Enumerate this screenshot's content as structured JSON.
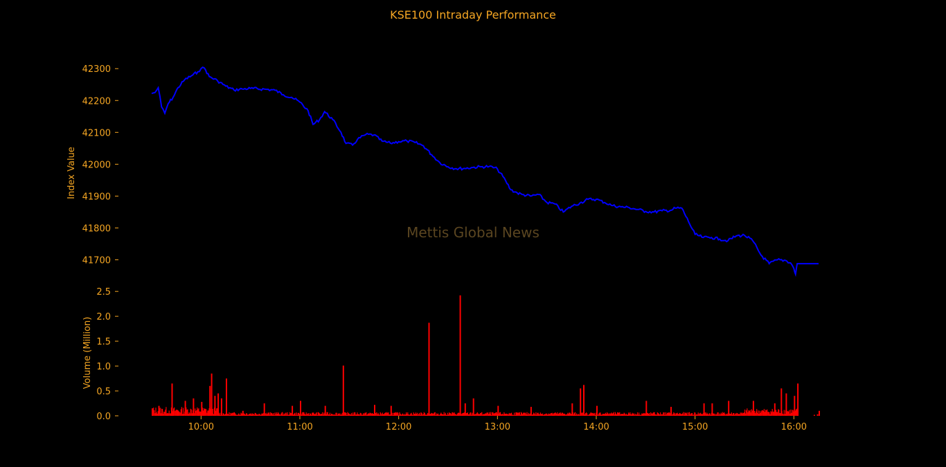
{
  "chart_data": [
    {
      "type": "line",
      "title": "KSE100 Intraday Performance",
      "ylabel": "Index Value",
      "ylim": [
        41636,
        42320
      ],
      "yticks": [
        41700,
        41800,
        41900,
        42000,
        42100,
        42200,
        42300
      ],
      "xlim": [
        "09:30",
        "16:15"
      ],
      "series": [
        {
          "color": "#0000ff",
          "points": [
            [
              "09:30",
              42222
            ],
            [
              "09:32",
              42225
            ],
            [
              "09:34",
              42240
            ],
            [
              "09:36",
              42180
            ],
            [
              "09:38",
              42160
            ],
            [
              "09:40",
              42190
            ],
            [
              "09:43",
              42210
            ],
            [
              "09:46",
              42240
            ],
            [
              "09:50",
              42265
            ],
            [
              "09:55",
              42280
            ],
            [
              "09:58",
              42290
            ],
            [
              "10:00",
              42300
            ],
            [
              "10:02",
              42302
            ],
            [
              "10:05",
              42275
            ],
            [
              "10:10",
              42262
            ],
            [
              "10:15",
              42245
            ],
            [
              "10:20",
              42233
            ],
            [
              "10:25",
              42236
            ],
            [
              "10:30",
              42238
            ],
            [
              "10:40",
              42235
            ],
            [
              "10:45",
              42232
            ],
            [
              "10:50",
              42218
            ],
            [
              "10:55",
              42210
            ],
            [
              "11:00",
              42195
            ],
            [
              "11:05",
              42168
            ],
            [
              "11:08",
              42125
            ],
            [
              "11:12",
              42140
            ],
            [
              "11:15",
              42165
            ],
            [
              "11:20",
              42140
            ],
            [
              "11:25",
              42100
            ],
            [
              "11:28",
              42065
            ],
            [
              "11:32",
              42060
            ],
            [
              "11:35",
              42078
            ],
            [
              "11:40",
              42093
            ],
            [
              "11:45",
              42092
            ],
            [
              "11:50",
              42072
            ],
            [
              "11:55",
              42066
            ],
            [
              "12:00",
              42071
            ],
            [
              "12:05",
              42073
            ],
            [
              "12:10",
              42068
            ],
            [
              "12:15",
              42058
            ],
            [
              "12:20",
              42030
            ],
            [
              "12:25",
              42005
            ],
            [
              "12:30",
              41992
            ],
            [
              "12:35",
              41986
            ],
            [
              "12:40",
              41987
            ],
            [
              "12:45",
              41990
            ],
            [
              "12:50",
              41992
            ],
            [
              "12:55",
              41993
            ],
            [
              "13:00",
              41985
            ],
            [
              "13:05",
              41948
            ],
            [
              "13:08",
              41920
            ],
            [
              "13:12",
              41910
            ],
            [
              "13:15",
              41905
            ],
            [
              "13:20",
              41900
            ],
            [
              "13:25",
              41905
            ],
            [
              "13:30",
              41880
            ],
            [
              "13:35",
              41875
            ],
            [
              "13:40",
              41850
            ],
            [
              "13:45",
              41868
            ],
            [
              "13:50",
              41878
            ],
            [
              "13:55",
              41890
            ],
            [
              "14:00",
              41890
            ],
            [
              "14:05",
              41880
            ],
            [
              "14:10",
              41870
            ],
            [
              "14:15",
              41866
            ],
            [
              "14:20",
              41864
            ],
            [
              "14:25",
              41858
            ],
            [
              "14:30",
              41852
            ],
            [
              "14:35",
              41850
            ],
            [
              "14:40",
              41854
            ],
            [
              "14:45",
              41855
            ],
            [
              "14:48",
              41862
            ],
            [
              "14:52",
              41862
            ],
            [
              "14:56",
              41820
            ],
            [
              "15:00",
              41780
            ],
            [
              "15:05",
              41770
            ],
            [
              "15:10",
              41770
            ],
            [
              "15:15",
              41765
            ],
            [
              "15:20",
              41760
            ],
            [
              "15:25",
              41775
            ],
            [
              "15:30",
              41777
            ],
            [
              "15:35",
              41760
            ],
            [
              "15:40",
              41715
            ],
            [
              "15:45",
              41688
            ],
            [
              "15:50",
              41700
            ],
            [
              "15:55",
              41698
            ],
            [
              "15:58",
              41690
            ],
            [
              "16:00",
              41673
            ],
            [
              "16:01",
              41655
            ],
            [
              "16:02",
              41688
            ],
            [
              "16:15",
              41688
            ]
          ]
        }
      ]
    },
    {
      "type": "bar",
      "ylabel": "Volume (Million)",
      "ylim": [
        0,
        2.6
      ],
      "yticks": [
        "0.0",
        "0.5",
        "1.0",
        "1.5",
        "2.0",
        "2.5"
      ],
      "xticks": [
        "10:00",
        "11:00",
        "12:00",
        "13:00",
        "14:00",
        "15:00",
        "16:00"
      ],
      "xlim": [
        "09:30",
        "16:15"
      ],
      "color": "#ff0000",
      "spikes": [
        [
          "09:30",
          0.15
        ],
        [
          "09:34",
          0.2
        ],
        [
          "09:42",
          0.65
        ],
        [
          "09:50",
          0.3
        ],
        [
          "09:55",
          0.35
        ],
        [
          "10:00",
          0.28
        ],
        [
          "10:05",
          0.6
        ],
        [
          "10:06",
          0.85
        ],
        [
          "10:08",
          0.4
        ],
        [
          "10:10",
          0.45
        ],
        [
          "10:12",
          0.35
        ],
        [
          "10:15",
          0.75
        ],
        [
          "10:25",
          0.1
        ],
        [
          "10:38",
          0.25
        ],
        [
          "10:55",
          0.2
        ],
        [
          "11:00",
          0.3
        ],
        [
          "11:15",
          0.2
        ],
        [
          "11:26",
          1.01
        ],
        [
          "11:45",
          0.22
        ],
        [
          "11:55",
          0.2
        ],
        [
          "12:18",
          1.87
        ],
        [
          "12:37",
          2.42
        ],
        [
          "12:40",
          0.25
        ],
        [
          "12:45",
          0.35
        ],
        [
          "13:00",
          0.2
        ],
        [
          "13:20",
          0.18
        ],
        [
          "13:45",
          0.25
        ],
        [
          "13:50",
          0.55
        ],
        [
          "13:52",
          0.62
        ],
        [
          "14:00",
          0.2
        ],
        [
          "14:30",
          0.3
        ],
        [
          "14:45",
          0.18
        ],
        [
          "15:05",
          0.25
        ],
        [
          "15:10",
          0.25
        ],
        [
          "15:20",
          0.3
        ],
        [
          "15:35",
          0.3
        ],
        [
          "15:48",
          0.25
        ],
        [
          "15:52",
          0.55
        ],
        [
          "15:55",
          0.45
        ],
        [
          "16:00",
          0.4
        ],
        [
          "16:02",
          0.65
        ],
        [
          "16:12",
          0.02
        ],
        [
          "16:14",
          0.03
        ],
        [
          "16:15",
          0.1
        ]
      ]
    }
  ],
  "watermark": "Mettis Global News"
}
